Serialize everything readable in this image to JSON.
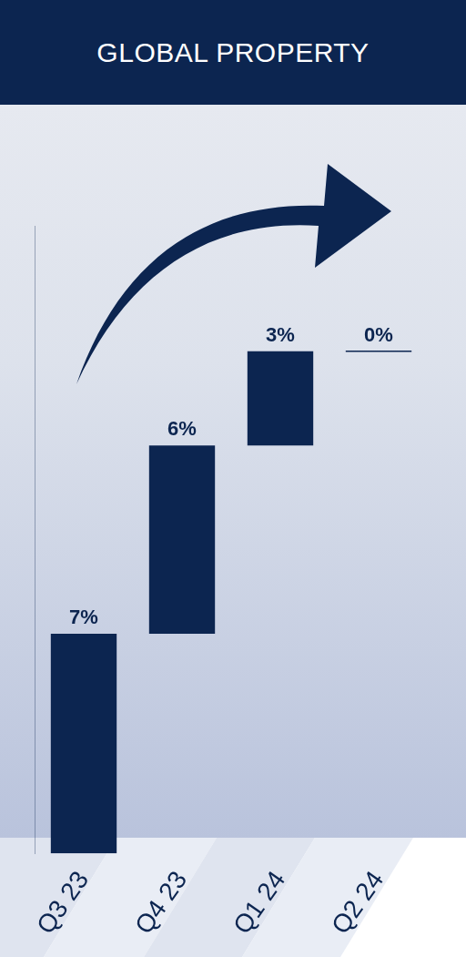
{
  "chart_data": {
    "type": "waterfall",
    "title": "GLOBAL PROPERTY",
    "categories": [
      "Q3 23",
      "Q4 23",
      "Q1 24",
      "Q2 24"
    ],
    "values": [
      7,
      6,
      3,
      0
    ],
    "value_labels": [
      "7%",
      "6%",
      "3%",
      "0%"
    ],
    "data_labels": true,
    "color": "#0c2550",
    "ylim": [
      0,
      20
    ],
    "yticks": [],
    "tick_labels": "x",
    "grid": false
  }
}
